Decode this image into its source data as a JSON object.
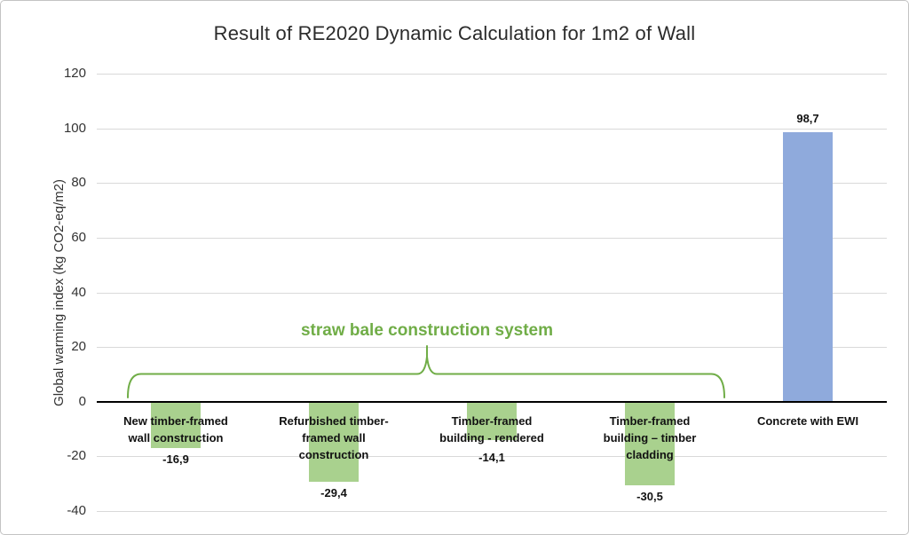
{
  "chart_data": {
    "type": "bar",
    "title": "Result of RE2020 Dynamic Calculation for 1m2 of Wall",
    "ylabel": "Global warming index (kg CO2-eq/m2)",
    "xlabel": "",
    "ylim": [
      -40,
      120
    ],
    "ytick_step": 20,
    "y_tick_labels": [
      "120",
      "100",
      "80",
      "60",
      "40",
      "20",
      "0",
      "-20",
      "-40"
    ],
    "grid": true,
    "legend_position": "none",
    "categories": [
      "New timber-framed wall construction",
      "Refurbished timber-framed wall construction",
      "Timber-framed building - rendered",
      "Timber-framed building – timber cladding",
      "Concrete with EWI"
    ],
    "category_lines": [
      [
        "New timber-framed",
        "wall construction"
      ],
      [
        "Refurbished timber-",
        "framed wall",
        "construction"
      ],
      [
        "Timber-framed",
        "building - rendered"
      ],
      [
        "Timber-framed",
        "building – timber",
        "cladding"
      ],
      [
        "Concrete with EWI"
      ]
    ],
    "values": [
      -16.9,
      -29.4,
      -14.1,
      -30.5,
      98.7
    ],
    "value_labels": [
      "-16,9",
      "-29,4",
      "-14,1",
      "-30,5",
      "98,7"
    ],
    "bar_colors": [
      "#A9D18E",
      "#A9D18E",
      "#A9D18E",
      "#A9D18E",
      "#8FAADC"
    ],
    "colors": {
      "negative_bars": "#A9D18E",
      "positive_bar": "#8FAADC",
      "annotation_green": "#70AD47",
      "gridline": "#D9D9D9",
      "axis_line": "#000000"
    },
    "annotation": {
      "text": "straw bale construction system",
      "color": "#70AD47",
      "spans_categories": "New timber-framed wall construction … Timber-framed building – timber cladding"
    }
  }
}
